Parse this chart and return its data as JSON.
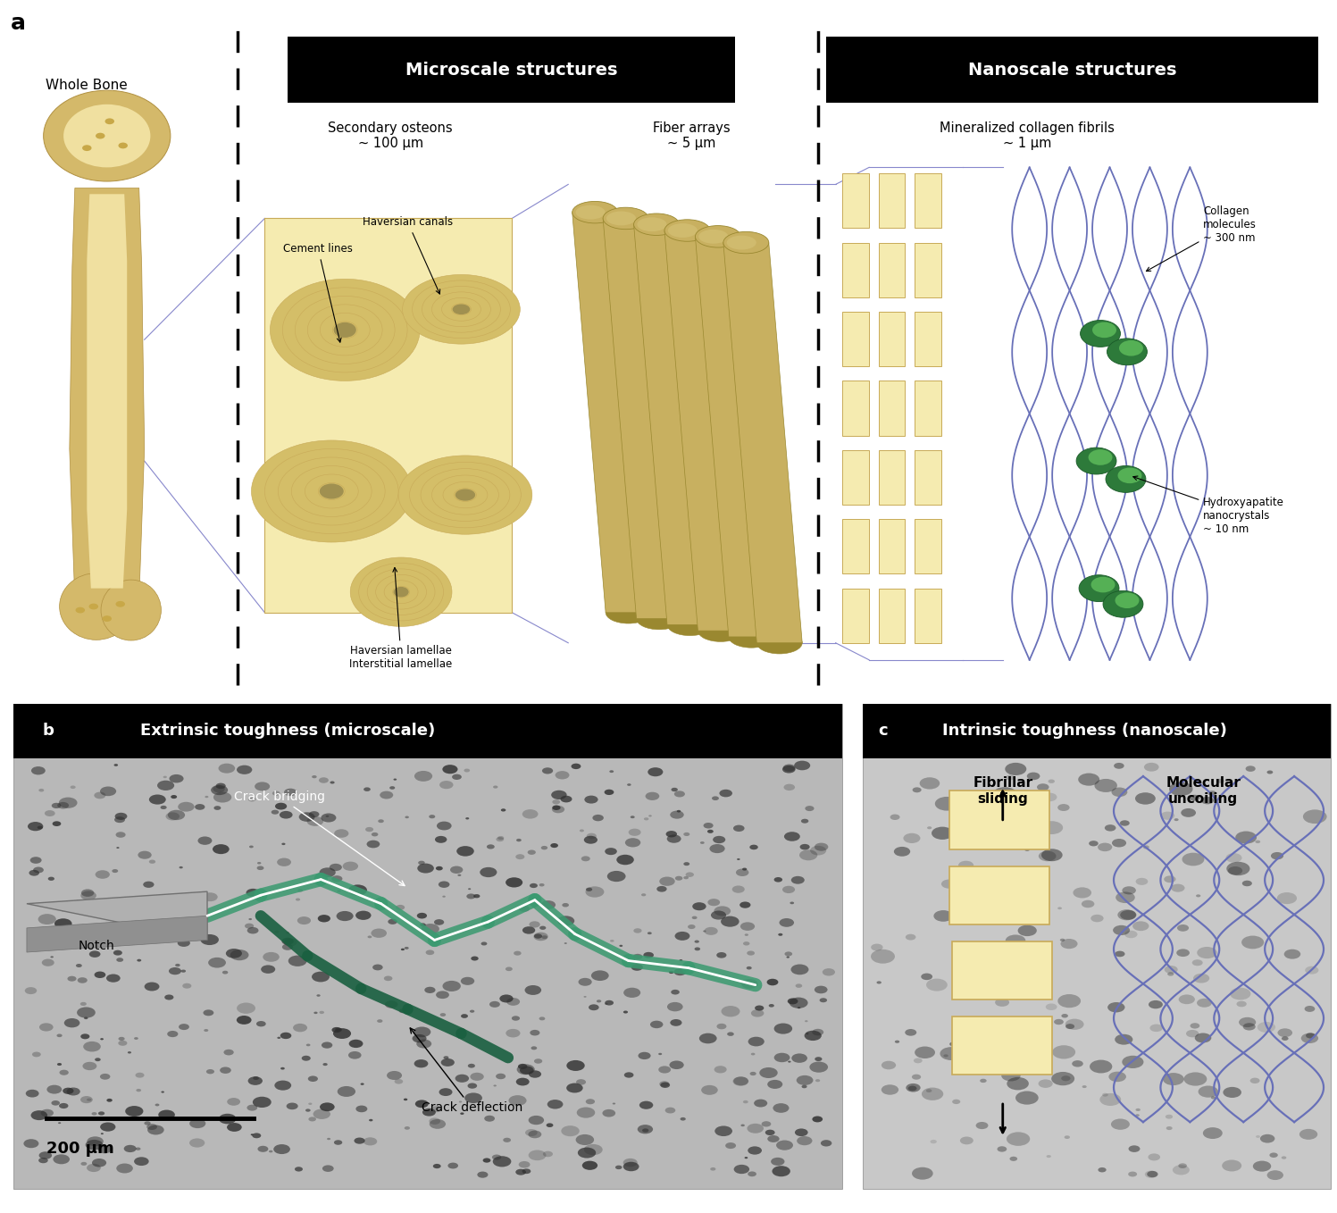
{
  "fig_width": 14.97,
  "fig_height": 13.58,
  "bg_color": "#ffffff",
  "panel_a_label": "a",
  "panel_b_label": "b",
  "panel_c_label": "c",
  "microscale_title": "Microscale structures",
  "nanoscale_title": "Nanoscale structures",
  "extrinsic_title": "Extrinsic toughness (microscale)",
  "intrinsic_title": "Intrinsic toughness (nanoscale)",
  "whole_bone_label": "Whole Bone",
  "secondary_osteons_label": "Secondary osteons\n~ 100 μm",
  "fiber_arrays_label": "Fiber arrays\n~ 5 μm",
  "collagen_fibrils_label": "Mineralized collagen fibrils\n~ 1 μm",
  "haversian_canals_label": "Haversian canals",
  "cement_lines_label": "Cement lines",
  "haversian_lamellae_label": "Haversian lamellae",
  "interstitial_lamellae_label": "Interstitial lamellae",
  "collagen_molecules_label": "Collagen\nmolecules\n~ 300 nm",
  "hydroxyapatite_label": "Hydroxyapatite\nnanocrystals\n~ 10 nm",
  "crack_bridging_label": "Crack bridging",
  "notch_label": "Notch",
  "crack_deflection_label": "Crack deflection",
  "scale_bar_label": "200 μm",
  "fibrillar_sliding_label": "Fibrillar\nsliding",
  "molecular_uncoiling_label": "Molecular\nuncoiling",
  "bone_color": "#d4b96a",
  "bone_light": "#f0e0a0",
  "osteon_bg": "#f5ebb0",
  "osteon_ring": "#c8aa58",
  "osteon_canal": "#a09050",
  "cylinder_color": "#c8b060",
  "fibril_yellow": "#f5ebb0",
  "fibril_border": "#c8aa58",
  "helix_color": "#6870b8",
  "crystal_color": "#2d7a3a",
  "crack_color": "#3a9a70",
  "notch_color": "#a0a0a0",
  "header_bg": "#000000",
  "header_text": "#ffffff",
  "zoom_line_color": "#8888cc"
}
